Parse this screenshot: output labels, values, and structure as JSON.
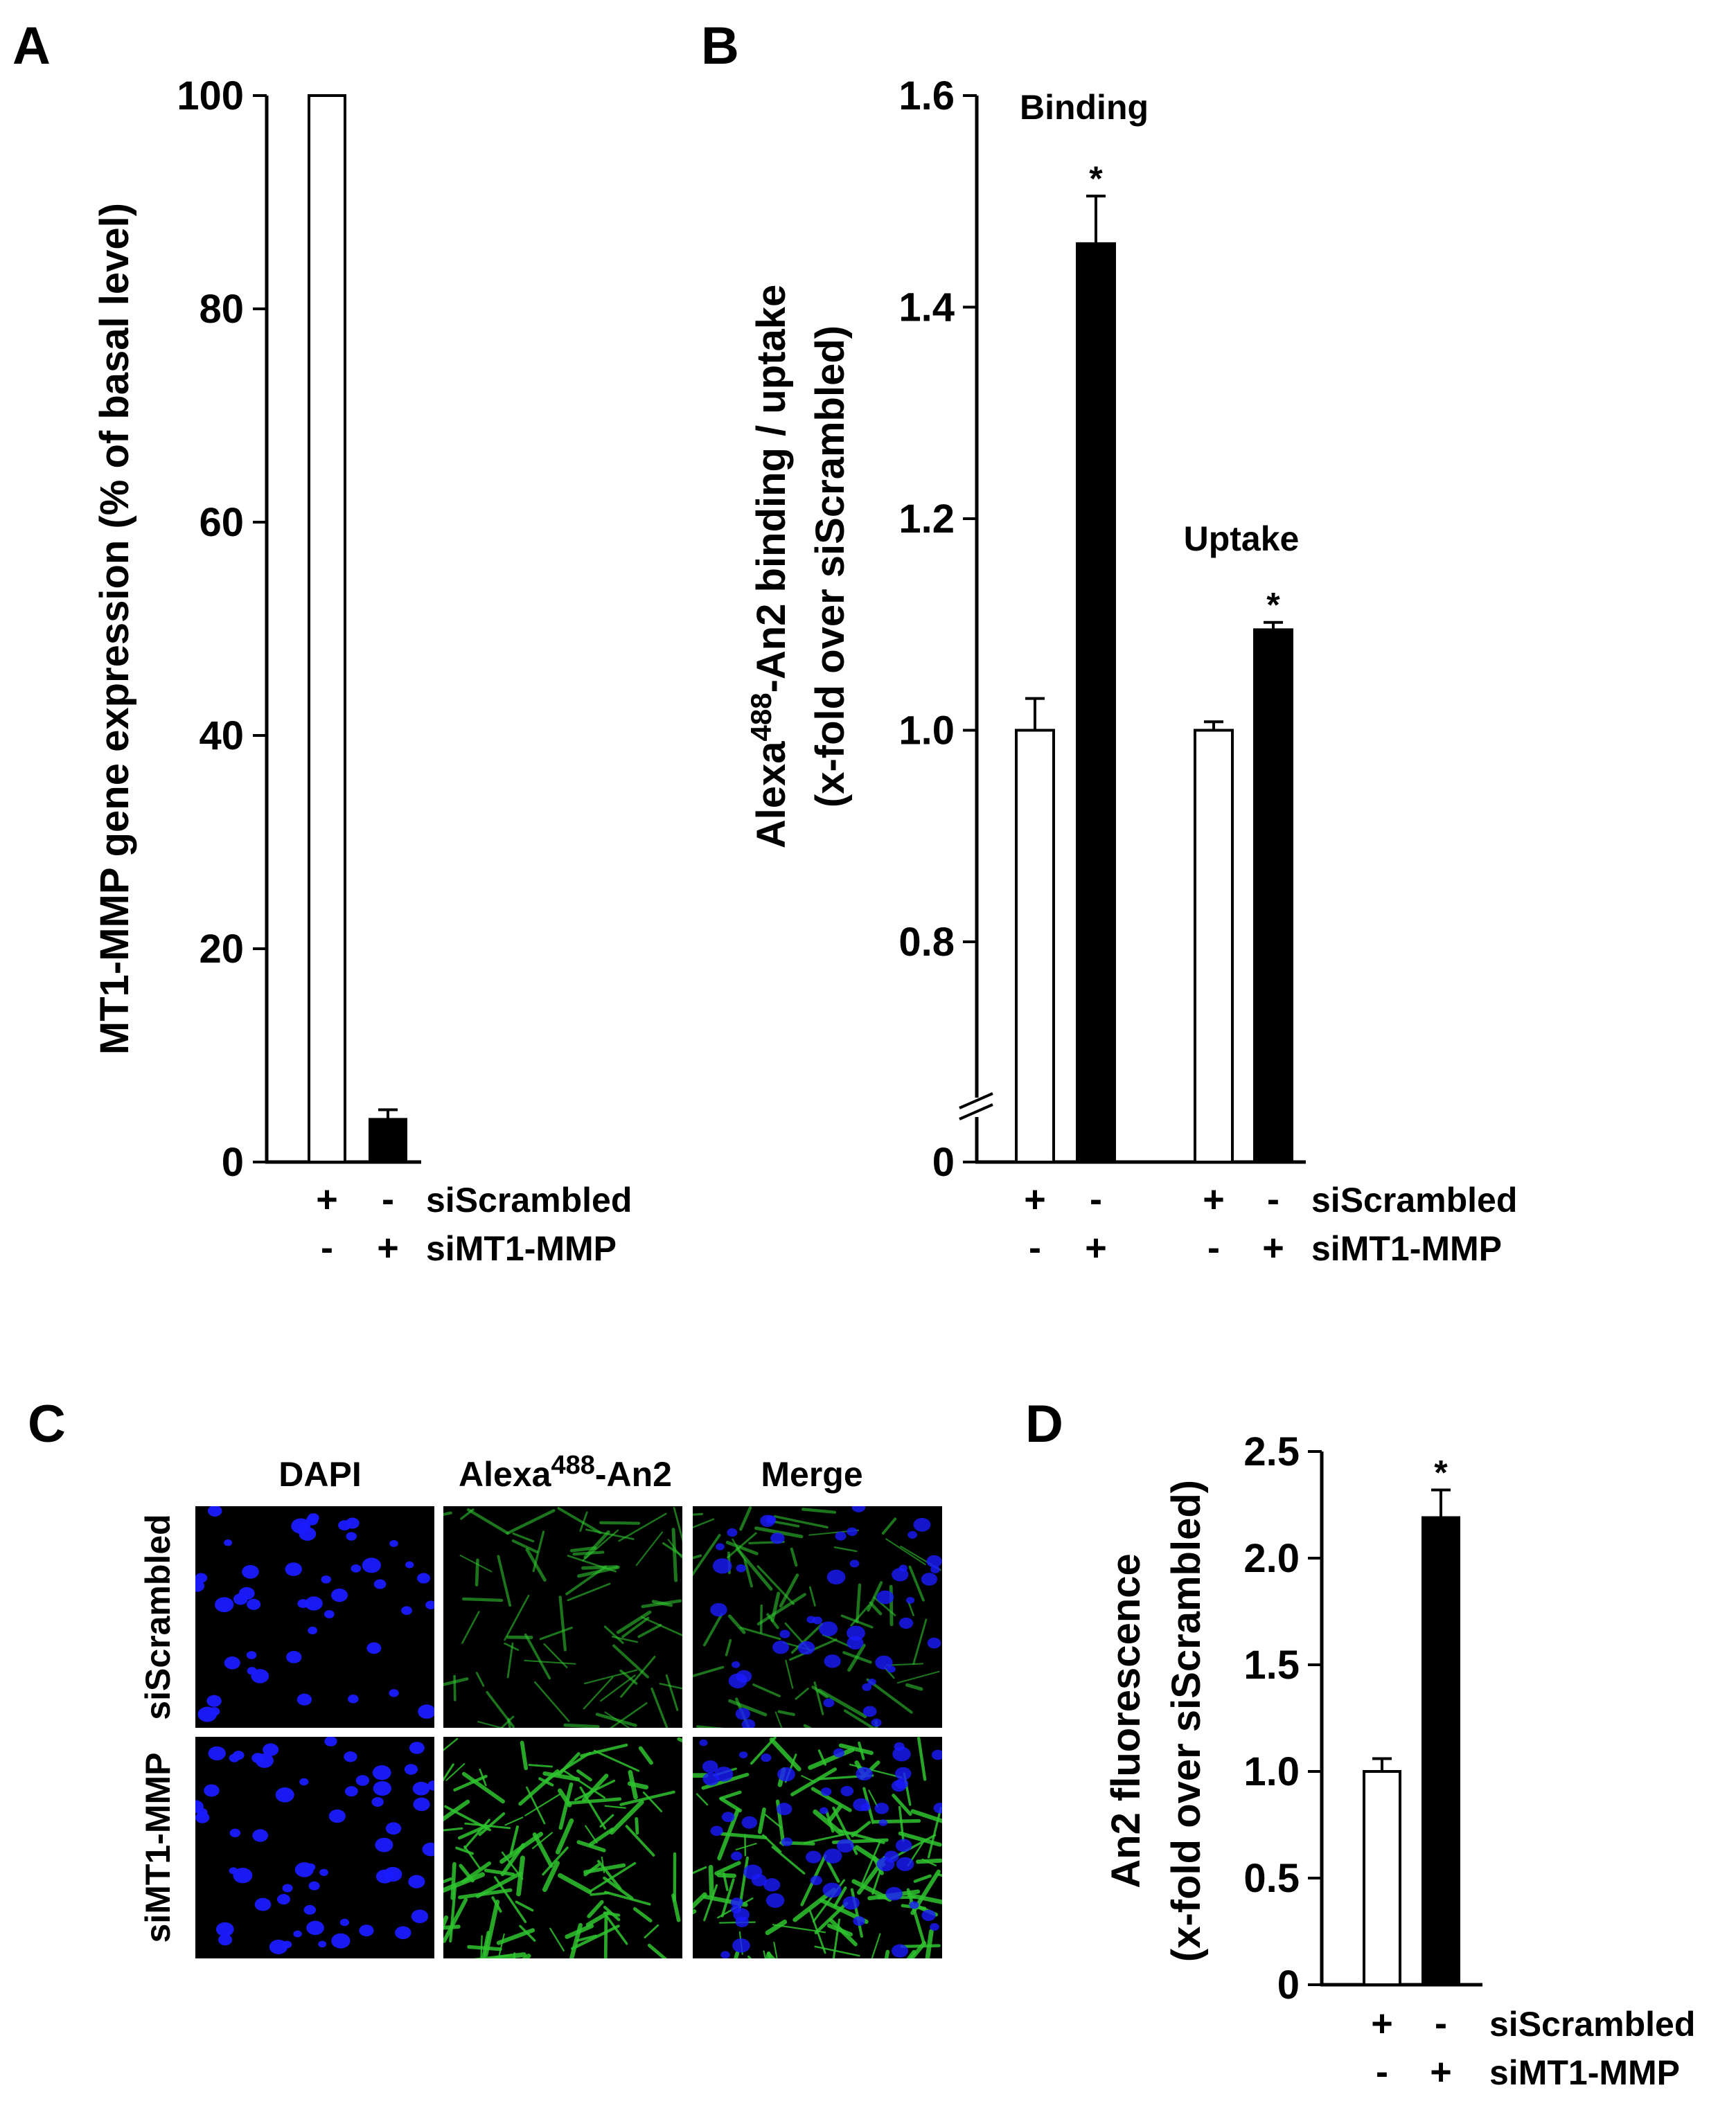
{
  "panels": {
    "A": {
      "letter": "A",
      "chart_data": {
        "type": "bar",
        "ylabel": "MT1-MMP gene expression (% of basal level)",
        "ylim": [
          0,
          100
        ],
        "yticks": [
          "0",
          "20",
          "40",
          "60",
          "80",
          "100"
        ],
        "bars": [
          {
            "value": 100,
            "error": 0,
            "fill": "#ffffff"
          },
          {
            "value": 4,
            "error": 0.9,
            "fill": "#000000"
          }
        ],
        "rows": [
          {
            "label": "siScrambled",
            "signs": [
              "+",
              "-"
            ]
          },
          {
            "label": "siMT1-MMP",
            "signs": [
              "-",
              "+"
            ]
          }
        ]
      }
    },
    "B": {
      "letter": "B",
      "chart_data": {
        "type": "bar",
        "ylabel_line1": "Alexa",
        "ylabel_sup": "488",
        "ylabel_rest": "-An2 binding / uptake",
        "ylabel_line2": "(x-fold over siScrambled)",
        "ylim": [
          0.6,
          1.6
        ],
        "axis_break": true,
        "yticks": [
          "0",
          "0.8",
          "1.0",
          "1.2",
          "1.4",
          "1.6"
        ],
        "groups": [
          {
            "label": "Binding",
            "bars": [
              {
                "value": 1.0,
                "error": 0.03,
                "fill": "#ffffff",
                "annotation": ""
              },
              {
                "value": 1.46,
                "error": 0.045,
                "fill": "#000000",
                "annotation": "*"
              }
            ]
          },
          {
            "label": "Uptake",
            "bars": [
              {
                "value": 1.0,
                "error": 0.008,
                "fill": "#ffffff",
                "annotation": ""
              },
              {
                "value": 1.095,
                "error": 0.007,
                "fill": "#000000",
                "annotation": "*"
              }
            ]
          }
        ],
        "rows": [
          {
            "label": "siScrambled",
            "signs": [
              "+",
              "-",
              "+",
              "-"
            ]
          },
          {
            "label": "siMT1-MMP",
            "signs": [
              "-",
              "+",
              "-",
              "+"
            ]
          }
        ]
      }
    },
    "C": {
      "letter": "C",
      "columns": [
        {
          "text": "DAPI",
          "sup": "",
          "rest": ""
        },
        {
          "text": "Alexa",
          "sup": "488",
          "rest": "-An2"
        },
        {
          "text": "Merge",
          "sup": "",
          "rest": ""
        }
      ],
      "rows": [
        "siScrambled",
        "siMT1-MMP"
      ],
      "colors": {
        "dapi": "#1a1aff",
        "alexa": "#2fc42f",
        "background": "#000000"
      }
    },
    "D": {
      "letter": "D",
      "chart_data": {
        "type": "bar",
        "ylabel_line1": "An2 fluorescence",
        "ylabel_line2": "(x-fold over siScrambled)",
        "ylim": [
          0,
          2.5
        ],
        "yticks": [
          "0",
          "0.5",
          "1.0",
          "1.5",
          "2.0",
          "2.5"
        ],
        "bars": [
          {
            "value": 1.0,
            "error": 0.06,
            "fill": "#ffffff",
            "annotation": ""
          },
          {
            "value": 2.19,
            "error": 0.13,
            "fill": "#000000",
            "annotation": "*"
          }
        ],
        "rows": [
          {
            "label": "siScrambled",
            "signs": [
              "+",
              "-"
            ]
          },
          {
            "label": "siMT1-MMP",
            "signs": [
              "-",
              "+"
            ]
          }
        ]
      }
    }
  }
}
